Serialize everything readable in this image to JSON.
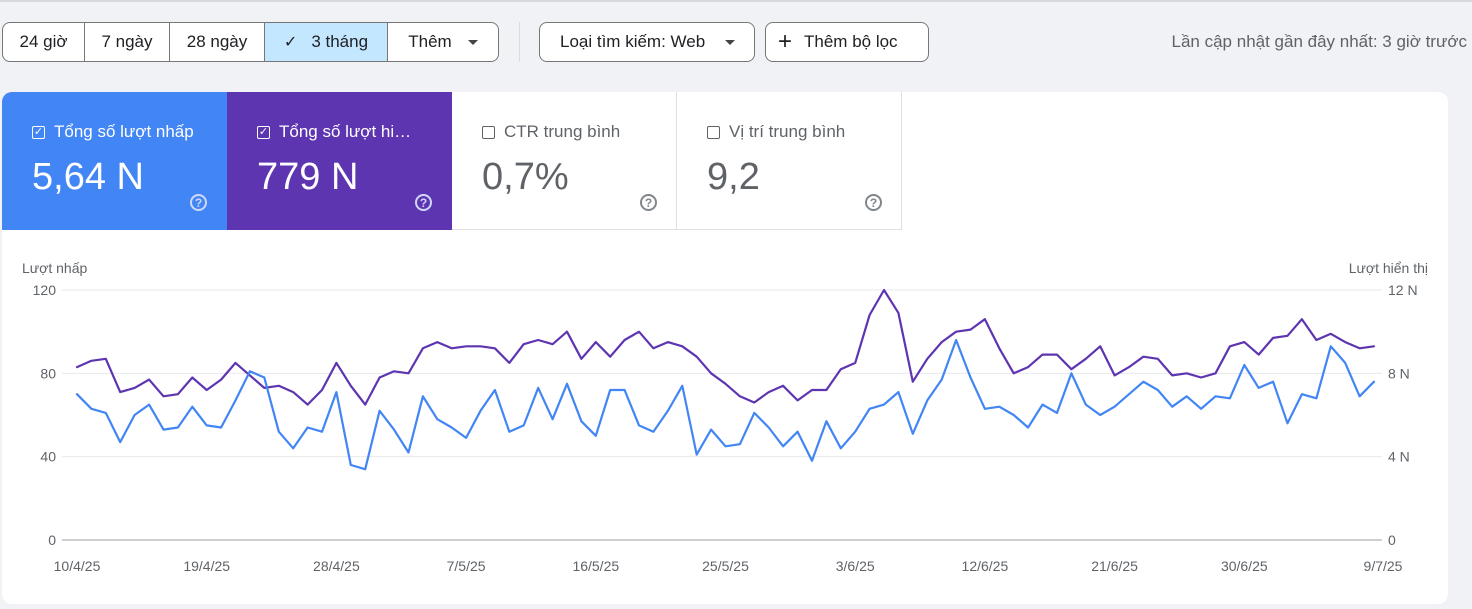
{
  "time_range": {
    "options": [
      "24 giờ",
      "7 ngày",
      "28 ngày",
      "3 tháng"
    ],
    "selected": "3 tháng",
    "more_label": "Thêm"
  },
  "filters": {
    "search_type_label": "Loại tìm kiếm: Web",
    "add_filter_label": "Thêm bộ lọc"
  },
  "last_updated": "Lần cập nhật gần đây nhất: 3 giờ trước",
  "metrics": [
    {
      "label": "Tổng số lượt nhấp",
      "value": "5,64 N",
      "checked": true,
      "color": "#4285f4"
    },
    {
      "label": "Tổng số lượt hiển thị",
      "value": "779 N",
      "checked": true,
      "color": "#5e35b1"
    },
    {
      "label": "CTR trung bình",
      "value": "0,7%",
      "checked": false
    },
    {
      "label": "Vị trí trung bình",
      "value": "9,2",
      "checked": false
    }
  ],
  "chart_data": {
    "type": "line",
    "ylabel_left": "Lượt nhấp",
    "ylabel_right": "Lượt hiển thị",
    "left_ticks": [
      "0",
      "40",
      "80",
      "120"
    ],
    "right_ticks": [
      "0",
      "4 N",
      "8 N",
      "12 N"
    ],
    "ylim_left": [
      0,
      120
    ],
    "ylim_right": [
      0,
      12000
    ],
    "grid": true,
    "x_tick_labels": [
      "10/4/25",
      "19/4/25",
      "28/4/25",
      "7/5/25",
      "16/5/25",
      "25/5/25",
      "3/6/25",
      "12/6/25",
      "21/6/25",
      "30/6/25",
      "9/7/25"
    ],
    "x_start": "10/4/25",
    "x_end": "9/7/25",
    "series": [
      {
        "name": "Tổng số lượt nhấp",
        "axis": "left",
        "color": "#4285f4",
        "values": [
          70,
          63,
          61,
          47,
          60,
          65,
          53,
          54,
          64,
          55,
          54,
          67,
          81,
          78,
          52,
          44,
          54,
          52,
          71,
          36,
          34,
          62,
          53,
          42,
          69,
          58,
          54,
          49,
          62,
          72,
          52,
          55,
          73,
          58,
          75,
          57,
          50,
          72,
          72,
          55,
          52,
          62,
          74,
          41,
          53,
          45,
          46,
          61,
          54,
          45,
          52,
          38,
          57,
          44,
          52,
          63,
          65,
          71,
          51,
          67,
          77,
          96,
          78,
          63,
          64,
          60,
          54,
          65,
          61,
          80,
          65,
          60,
          64,
          70,
          76,
          72,
          64,
          69,
          63,
          69,
          68,
          84,
          73,
          76,
          56,
          70,
          68,
          93,
          85,
          69,
          76
        ]
      },
      {
        "name": "Tổng số lượt hiển thị",
        "axis": "right",
        "color": "#5e35b1",
        "values": [
          8300,
          8600,
          8700,
          7100,
          7300,
          7700,
          6900,
          7000,
          7800,
          7200,
          7700,
          8500,
          7900,
          7300,
          7400,
          7100,
          6500,
          7200,
          8500,
          7400,
          6500,
          7800,
          8100,
          8000,
          9200,
          9500,
          9200,
          9300,
          9300,
          9200,
          8500,
          9400,
          9600,
          9400,
          10000,
          8700,
          9500,
          8800,
          9600,
          10000,
          9200,
          9500,
          9300,
          8800,
          8000,
          7500,
          6900,
          6600,
          7100,
          7400,
          6700,
          7200,
          7200,
          8200,
          8500,
          10800,
          12000,
          10900,
          7600,
          8700,
          9500,
          10000,
          10100,
          10600,
          9200,
          8000,
          8300,
          8900,
          8900,
          8200,
          8700,
          9300,
          7900,
          8300,
          8800,
          8700,
          7900,
          8000,
          7800,
          8000,
          9300,
          9500,
          8900,
          9700,
          9800,
          10600,
          9600,
          9900,
          9500,
          9200,
          9300
        ]
      }
    ]
  }
}
